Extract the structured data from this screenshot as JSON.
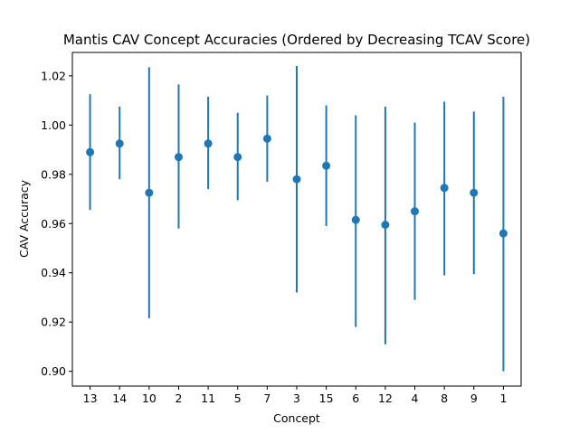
{
  "chart_data": {
    "type": "scatter",
    "title": "Mantis CAV Concept Accuracies (Ordered by Decreasing TCAV Score)",
    "xlabel": "Concept",
    "ylabel": "CAV Accuracy",
    "categories": [
      "13",
      "14",
      "10",
      "2",
      "11",
      "5",
      "7",
      "3",
      "15",
      "6",
      "12",
      "4",
      "8",
      "9",
      "1"
    ],
    "series": [
      {
        "values": [
          0.989,
          0.9925,
          0.9725,
          0.987,
          0.9925,
          0.987,
          0.9945,
          0.978,
          0.9835,
          0.9615,
          0.9595,
          0.965,
          0.9745,
          0.9725,
          0.956
        ],
        "err_low": [
          0.9655,
          0.978,
          0.9215,
          0.958,
          0.974,
          0.9695,
          0.977,
          0.932,
          0.959,
          0.918,
          0.911,
          0.929,
          0.939,
          0.9395,
          0.9
        ]
      }
    ],
    "series_err_high": [
      1.0125,
      1.0075,
      1.0235,
      1.0165,
      1.0115,
      1.005,
      1.012,
      1.024,
      1.008,
      1.004,
      1.0075,
      1.001,
      1.0095,
      1.0055,
      1.0115
    ],
    "ylim": [
      0.894,
      1.0295
    ],
    "yticks": [
      "0.90",
      "0.92",
      "0.94",
      "0.96",
      "0.98",
      "1.00",
      "1.02"
    ],
    "grid": false,
    "color": "#1f77b4"
  }
}
